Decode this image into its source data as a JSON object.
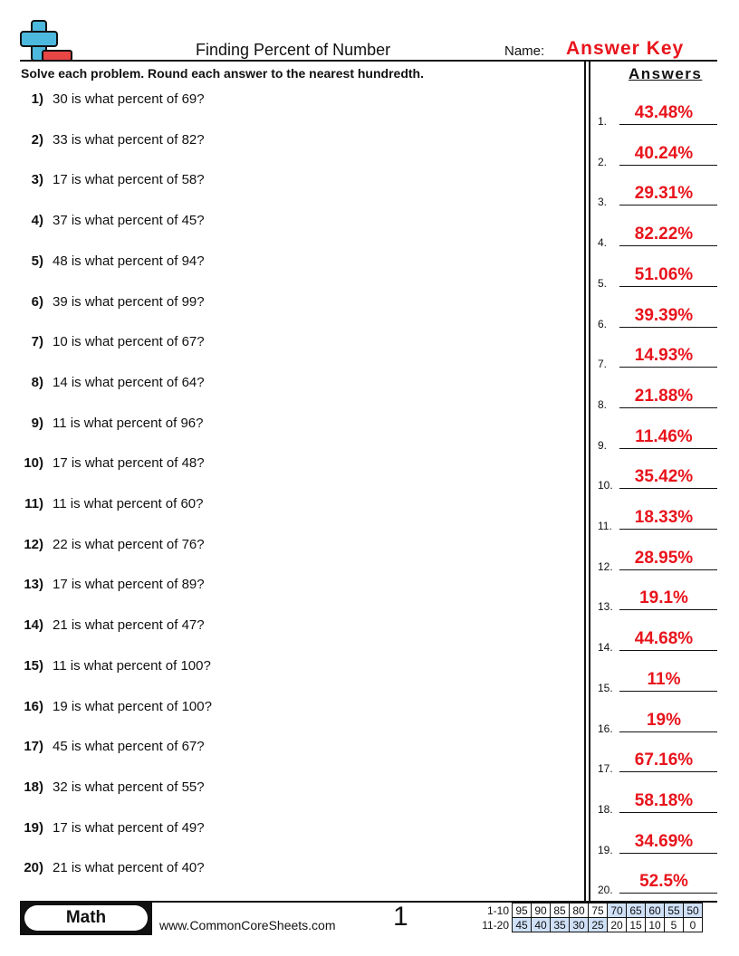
{
  "header": {
    "title": "Finding Percent of Number",
    "name_label": "Name:",
    "name_value": "Answer Key"
  },
  "instructions": "Solve each problem. Round each answer to the nearest hundredth.",
  "answers_heading": "Answers",
  "problems": [
    {
      "num": "1)",
      "text": "30 is what percent of 69?",
      "ans_num": "1.",
      "answer": "43.48%"
    },
    {
      "num": "2)",
      "text": "33 is what percent of 82?",
      "ans_num": "2.",
      "answer": "40.24%"
    },
    {
      "num": "3)",
      "text": "17 is what percent of 58?",
      "ans_num": "3.",
      "answer": "29.31%"
    },
    {
      "num": "4)",
      "text": "37 is what percent of 45?",
      "ans_num": "4.",
      "answer": "82.22%"
    },
    {
      "num": "5)",
      "text": "48 is what percent of 94?",
      "ans_num": "5.",
      "answer": "51.06%"
    },
    {
      "num": "6)",
      "text": "39 is what percent of 99?",
      "ans_num": "6.",
      "answer": "39.39%"
    },
    {
      "num": "7)",
      "text": "10 is what percent of 67?",
      "ans_num": "7.",
      "answer": "14.93%"
    },
    {
      "num": "8)",
      "text": "14 is what percent of 64?",
      "ans_num": "8.",
      "answer": "21.88%"
    },
    {
      "num": "9)",
      "text": "11 is what percent of 96?",
      "ans_num": "9.",
      "answer": "11.46%"
    },
    {
      "num": "10)",
      "text": "17 is what percent of 48?",
      "ans_num": "10.",
      "answer": "35.42%"
    },
    {
      "num": "11)",
      "text": "11 is what percent of 60?",
      "ans_num": "11.",
      "answer": "18.33%"
    },
    {
      "num": "12)",
      "text": "22 is what percent of 76?",
      "ans_num": "12.",
      "answer": "28.95%"
    },
    {
      "num": "13)",
      "text": "17 is what percent of 89?",
      "ans_num": "13.",
      "answer": "19.1%"
    },
    {
      "num": "14)",
      "text": "21 is what percent of 47?",
      "ans_num": "14.",
      "answer": "44.68%"
    },
    {
      "num": "15)",
      "text": "11 is what percent of 100?",
      "ans_num": "15.",
      "answer": "11%"
    },
    {
      "num": "16)",
      "text": "19 is what percent of 100?",
      "ans_num": "16.",
      "answer": "19%"
    },
    {
      "num": "17)",
      "text": "45 is what percent of 67?",
      "ans_num": "17.",
      "answer": "67.16%"
    },
    {
      "num": "18)",
      "text": "32 is what percent of 55?",
      "ans_num": "18.",
      "answer": "58.18%"
    },
    {
      "num": "19)",
      "text": "17 is what percent of 49?",
      "ans_num": "19.",
      "answer": "34.69%"
    },
    {
      "num": "20)",
      "text": "21 is what percent of 40?",
      "ans_num": "20.",
      "answer": "52.5%"
    }
  ],
  "footer": {
    "subject": "Math",
    "website": "www.CommonCoreSheets.com",
    "page_number": "1",
    "score_rows": [
      {
        "label": "1-10",
        "values": [
          "95",
          "90",
          "85",
          "80",
          "75",
          "70",
          "65",
          "60",
          "55",
          "50"
        ],
        "highlight": [
          false,
          false,
          false,
          false,
          false,
          true,
          true,
          true,
          true,
          true
        ]
      },
      {
        "label": "11-20",
        "values": [
          "45",
          "40",
          "35",
          "30",
          "25",
          "20",
          "15",
          "10",
          "5",
          "0"
        ],
        "highlight": [
          true,
          true,
          true,
          true,
          true,
          false,
          false,
          false,
          false,
          false
        ]
      }
    ],
    "highlight_color": "#cfe0f7"
  },
  "colors": {
    "answer_red": "#e8141c",
    "logo_blue": "#4db8de",
    "logo_red": "#e84545"
  }
}
